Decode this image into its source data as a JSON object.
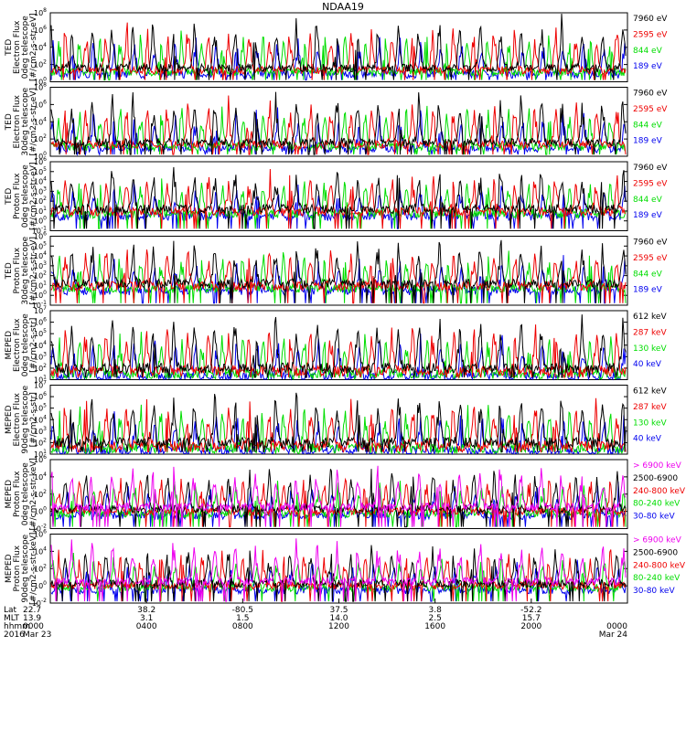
{
  "title": "NDAA19",
  "colors": {
    "black": "#000000",
    "red": "#ee0000",
    "green": "#00dd00",
    "blue": "#0000ee",
    "magenta": "#ee00ee"
  },
  "ephemeris": {
    "row_labels": [
      "Lat",
      "MLT",
      "hhmm",
      "2016"
    ],
    "columns": [
      {
        "lat": "22.7",
        "mlt": "13.9",
        "hhmm": "0000",
        "date": "Mar 23"
      },
      {
        "lat": "38.2",
        "mlt": "3.1",
        "hhmm": "0400",
        "date": ""
      },
      {
        "lat": "-80.5",
        "mlt": "1.5",
        "hhmm": "0800",
        "date": ""
      },
      {
        "lat": "37.5",
        "mlt": "14.0",
        "hhmm": "1200",
        "date": ""
      },
      {
        "lat": "3.8",
        "mlt": "2.5",
        "hhmm": "1600",
        "date": ""
      },
      {
        "lat": "-52.2",
        "mlt": "15.7",
        "hhmm": "2000",
        "date": ""
      },
      {
        "lat": "",
        "mlt": "",
        "hhmm": "0000",
        "date": "Mar 24"
      }
    ]
  },
  "chart_data": [
    {
      "type": "line",
      "ylabel": [
        "TED",
        "Electron Flux",
        "0deg telescope",
        "[#/cm2-s-str-eV]"
      ],
      "yscale": "log",
      "ylim_exp": [
        0,
        8
      ],
      "tick_labels": [
        "10^0",
        "10^2",
        "10^4",
        "10^6",
        "10^8"
      ],
      "base_exp": 1.6,
      "series": [
        {
          "name": "7960 eV",
          "color": "#000000"
        },
        {
          "name": "2595 eV",
          "color": "#ee0000"
        },
        {
          "name": "844 eV",
          "color": "#00dd00"
        },
        {
          "name": "189 eV",
          "color": "#0000ee"
        }
      ]
    },
    {
      "type": "line",
      "ylabel": [
        "TED",
        "Electron Flux",
        "30deg telescope",
        "[#/cm2-s-str-eV]"
      ],
      "yscale": "log",
      "ylim_exp": [
        0,
        8
      ],
      "tick_labels": [
        "10^0",
        "10^2",
        "10^4",
        "10^6",
        "10^8"
      ],
      "base_exp": 1.6,
      "series": [
        {
          "name": "7960 eV",
          "color": "#000000"
        },
        {
          "name": "2595 eV",
          "color": "#ee0000"
        },
        {
          "name": "844 eV",
          "color": "#00dd00"
        },
        {
          "name": "189 eV",
          "color": "#0000ee"
        }
      ]
    },
    {
      "type": "line",
      "ylabel": [
        "TED",
        "Proton Flux",
        "0deg telescope",
        "[#/cm2-s-str-eV]"
      ],
      "yscale": "log",
      "ylim_exp": [
        -1,
        6
      ],
      "tick_labels": [
        "10^-1",
        "10^0",
        "10^1",
        "10^2",
        "10^3",
        "10^4",
        "10^5",
        "10^6"
      ],
      "base_exp": 1.2,
      "series": [
        {
          "name": "7960 eV",
          "color": "#000000"
        },
        {
          "name": "2595 eV",
          "color": "#ee0000"
        },
        {
          "name": "844 eV",
          "color": "#00dd00"
        },
        {
          "name": "189 eV",
          "color": "#0000ee"
        }
      ]
    },
    {
      "type": "line",
      "ylabel": [
        "TED",
        "Proton Flux",
        "30deg telescope",
        "[#/cm2-s-str-eV]"
      ],
      "yscale": "log",
      "ylim_exp": [
        -1,
        6
      ],
      "tick_labels": [
        "10^-1",
        "10^0",
        "10^1",
        "10^2",
        "10^3",
        "10^4",
        "10^5",
        "10^6"
      ],
      "base_exp": 1.2,
      "series": [
        {
          "name": "7960 eV",
          "color": "#000000"
        },
        {
          "name": "2595 eV",
          "color": "#ee0000"
        },
        {
          "name": "844 eV",
          "color": "#00dd00"
        },
        {
          "name": "189 eV",
          "color": "#0000ee"
        }
      ]
    },
    {
      "type": "line",
      "ylabel": [
        "MEPED",
        "Electron Flux",
        "0deg telescope",
        "[#/cm2-s-str]"
      ],
      "yscale": "log",
      "ylim_exp": [
        1,
        7
      ],
      "tick_labels": [
        "10^1",
        "10^2",
        "10^3",
        "10^4",
        "10^5",
        "10^6",
        "10^7"
      ],
      "base_exp": 2.0,
      "series": [
        {
          "name": "612 keV",
          "color": "#000000"
        },
        {
          "name": "287 keV",
          "color": "#ee0000"
        },
        {
          "name": "130 keV",
          "color": "#00dd00"
        },
        {
          "name": "40 keV",
          "color": "#0000ee"
        }
      ]
    },
    {
      "type": "line",
      "ylabel": [
        "MEPED",
        "Electron Flux",
        "90deg telescope",
        "[#/cm2-s-str]"
      ],
      "yscale": "log",
      "ylim_exp": [
        1,
        7
      ],
      "tick_labels": [
        "10^1",
        "10^2",
        "10^3",
        "10^4",
        "10^5",
        "10^6",
        "10^7"
      ],
      "base_exp": 2.0,
      "series": [
        {
          "name": "612 keV",
          "color": "#000000"
        },
        {
          "name": "287 keV",
          "color": "#ee0000"
        },
        {
          "name": "130 keV",
          "color": "#00dd00"
        },
        {
          "name": "40 keV",
          "color": "#0000ee"
        }
      ]
    },
    {
      "type": "line",
      "ylabel": [
        "MEPED",
        "Proton Flux",
        "0deg telescope",
        "[#/cm2-s-str-keV]"
      ],
      "yscale": "log",
      "ylim_exp": [
        -2,
        6
      ],
      "tick_labels": [
        "10^-2",
        "10^0",
        "10^2",
        "10^4",
        "10^6"
      ],
      "base_exp": 0.5,
      "series": [
        {
          "name": "> 6900 keV",
          "color": "#ee00ee"
        },
        {
          "name": "2500-6900",
          "color": "#000000"
        },
        {
          "name": "240-800 keV",
          "color": "#ee0000"
        },
        {
          "name": "80-240 keV",
          "color": "#00dd00"
        },
        {
          "name": "30-80 keV",
          "color": "#0000ee"
        }
      ]
    },
    {
      "type": "line",
      "ylabel": [
        "MEPED",
        "Proton Flux",
        "90deg telescope",
        "[#/cm2-s-str-keV]"
      ],
      "yscale": "log",
      "ylim_exp": [
        -2,
        6
      ],
      "tick_labels": [
        "10^-2",
        "10^0",
        "10^2",
        "10^4",
        "10^6"
      ],
      "base_exp": 0.5,
      "series": [
        {
          "name": "> 6900 keV",
          "color": "#ee00ee"
        },
        {
          "name": "2500-6900",
          "color": "#000000"
        },
        {
          "name": "240-800 keV",
          "color": "#ee0000"
        },
        {
          "name": "80-240 keV",
          "color": "#00dd00"
        },
        {
          "name": "30-80 keV",
          "color": "#0000ee"
        }
      ]
    }
  ]
}
